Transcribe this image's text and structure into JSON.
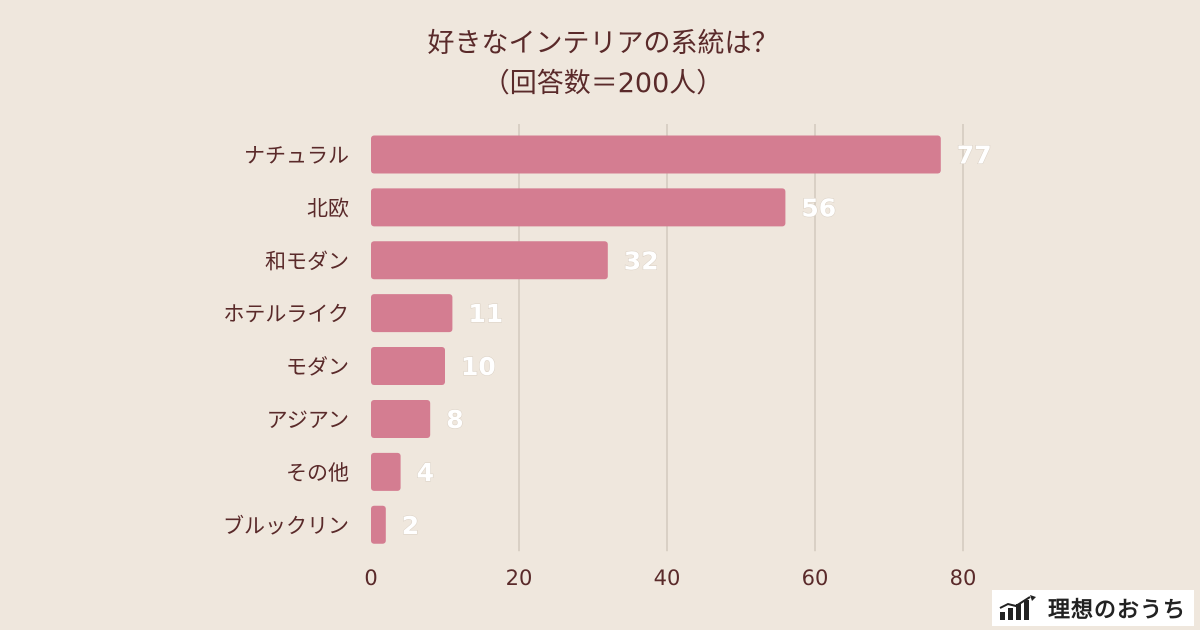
{
  "chart_data": {
    "type": "bar",
    "orientation": "horizontal",
    "title": "好きなインテリアの系統は？",
    "subtitle": "（回答数＝200人）",
    "categories": [
      "ナチュラル",
      "北欧",
      "和モダン",
      "ホテルライク",
      "モダン",
      "アジアン",
      "その他",
      "ブルックリン"
    ],
    "values": [
      77,
      56,
      32,
      11,
      10,
      8,
      4,
      2
    ],
    "xlim": [
      0,
      80
    ],
    "xticks": [
      0,
      20,
      40,
      60,
      80
    ],
    "grid": true,
    "bar_color": "#d47d91"
  },
  "brand": {
    "name": "理想のおうち",
    "icon": "bar-chart-house-icon"
  }
}
